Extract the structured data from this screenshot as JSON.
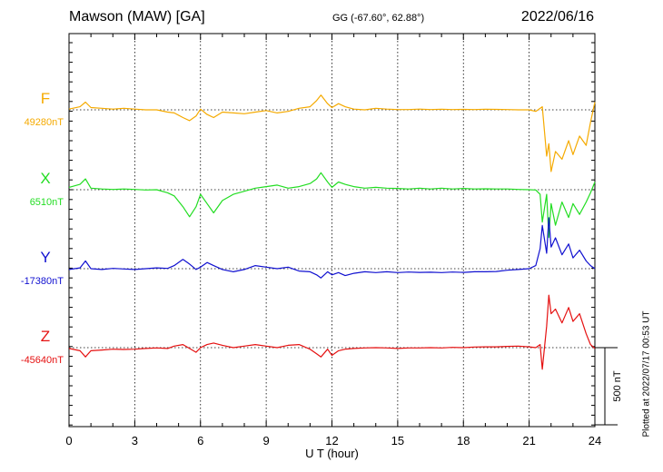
{
  "header": {
    "station": "Mawson (MAW)  [GA]",
    "coords": "GG (-67.60°,  62.88°)",
    "date": "2022/06/16"
  },
  "plotted_note": "Plotted at 2022/07/17 00:53 UT",
  "chart_data": {
    "type": "line",
    "title": "Mawson (MAW)  [GA]",
    "xlabel": "U T (hour)",
    "xlim": [
      0,
      24
    ],
    "xticks": [
      0,
      3,
      6,
      9,
      12,
      15,
      18,
      21,
      24
    ],
    "grid": true,
    "scale_bar": {
      "value": 500,
      "label": "500 nT"
    },
    "series": [
      {
        "name": "F",
        "baseline_label": "49280nT",
        "baseline": 49280,
        "color": "#f5aa00",
        "x": [
          0,
          0.5,
          0.75,
          1,
          1.5,
          2,
          2.5,
          3,
          3.5,
          4,
          4.5,
          4.8,
          5.2,
          5.5,
          5.8,
          6,
          6.3,
          6.6,
          7,
          7.5,
          8,
          8.5,
          9,
          9.5,
          10,
          10.5,
          11,
          11.3,
          11.5,
          11.8,
          12,
          12.3,
          12.6,
          13,
          13.5,
          14,
          14.5,
          15,
          15.5,
          16,
          16.5,
          17,
          17.5,
          18,
          18.5,
          19,
          19.5,
          20,
          20.5,
          21,
          21.3,
          21.6,
          21.8,
          21.9,
          22,
          22.2,
          22.5,
          22.8,
          23,
          23.3,
          23.6,
          23.8,
          24
        ],
        "values": [
          49285,
          49300,
          49330,
          49295,
          49290,
          49285,
          49290,
          49285,
          49280,
          49280,
          49265,
          49260,
          49230,
          49210,
          49240,
          49285,
          49250,
          49230,
          49265,
          49260,
          49255,
          49265,
          49275,
          49260,
          49270,
          49290,
          49300,
          49340,
          49375,
          49320,
          49295,
          49320,
          49300,
          49285,
          49280,
          49290,
          49285,
          49282,
          49282,
          49285,
          49282,
          49284,
          49282,
          49283,
          49282,
          49284,
          49283,
          49282,
          49280,
          49280,
          49270,
          49300,
          48980,
          49060,
          48880,
          49010,
          48960,
          49080,
          48990,
          49110,
          49050,
          49200,
          49330
        ]
      },
      {
        "name": "X",
        "baseline_label": "6510nT",
        "baseline": 6510,
        "color": "#22dd22",
        "x": [
          0,
          0.5,
          0.75,
          1,
          1.5,
          2,
          2.5,
          3,
          3.5,
          4,
          4.5,
          4.8,
          5.2,
          5.5,
          5.8,
          6,
          6.3,
          6.6,
          7,
          7.5,
          8,
          8.5,
          9,
          9.5,
          10,
          10.5,
          11,
          11.3,
          11.5,
          11.8,
          12,
          12.3,
          12.6,
          13,
          13.5,
          14,
          14.5,
          15,
          15.5,
          16,
          16.5,
          17,
          17.5,
          18,
          18.5,
          19,
          19.5,
          20,
          20.5,
          21,
          21.3,
          21.5,
          21.6,
          21.8,
          21.9,
          22,
          22.2,
          22.5,
          22.8,
          23,
          23.3,
          23.6,
          23.8,
          24
        ],
        "values": [
          6525,
          6545,
          6580,
          6520,
          6515,
          6512,
          6515,
          6512,
          6508,
          6510,
          6490,
          6470,
          6400,
          6335,
          6400,
          6480,
          6420,
          6360,
          6440,
          6480,
          6500,
          6520,
          6530,
          6540,
          6520,
          6530,
          6550,
          6580,
          6620,
          6560,
          6525,
          6560,
          6545,
          6530,
          6520,
          6525,
          6520,
          6518,
          6515,
          6520,
          6515,
          6520,
          6515,
          6518,
          6515,
          6516,
          6515,
          6515,
          6512,
          6510,
          6508,
          6480,
          6300,
          6480,
          6200,
          6420,
          6280,
          6430,
          6330,
          6420,
          6350,
          6430,
          6490,
          6560
        ]
      },
      {
        "name": "Y",
        "baseline_label": "-17380nT",
        "baseline": -17380,
        "color": "#1010d0",
        "x": [
          0,
          0.5,
          0.75,
          1,
          1.5,
          2,
          2.5,
          3,
          3.5,
          4,
          4.5,
          4.8,
          5.2,
          5.5,
          5.8,
          6,
          6.3,
          6.6,
          7,
          7.5,
          8,
          8.5,
          9,
          9.5,
          10,
          10.5,
          11,
          11.3,
          11.5,
          11.8,
          12,
          12.3,
          12.6,
          13,
          13.5,
          14,
          14.5,
          15,
          15.5,
          16,
          16.5,
          17,
          17.5,
          18,
          18.5,
          19,
          19.5,
          20,
          20.5,
          21,
          21.3,
          21.5,
          21.6,
          21.8,
          21.9,
          22,
          22.2,
          22.5,
          22.8,
          23,
          23.3,
          23.6,
          23.8,
          24
        ],
        "values": [
          -17385,
          -17375,
          -17330,
          -17380,
          -17385,
          -17378,
          -17382,
          -17385,
          -17380,
          -17375,
          -17378,
          -17360,
          -17320,
          -17350,
          -17385,
          -17370,
          -17340,
          -17360,
          -17385,
          -17400,
          -17385,
          -17360,
          -17370,
          -17380,
          -17370,
          -17395,
          -17400,
          -17420,
          -17440,
          -17400,
          -17420,
          -17405,
          -17425,
          -17410,
          -17400,
          -17405,
          -17400,
          -17405,
          -17402,
          -17404,
          -17403,
          -17405,
          -17402,
          -17404,
          -17400,
          -17400,
          -17398,
          -17390,
          -17385,
          -17380,
          -17360,
          -17250,
          -17100,
          -17280,
          -17050,
          -17240,
          -17180,
          -17290,
          -17220,
          -17310,
          -17260,
          -17330,
          -17360,
          -17380
        ]
      },
      {
        "name": "Z",
        "baseline_label": "-45640nT",
        "baseline": -45640,
        "color": "#e51010",
        "x": [
          0,
          0.5,
          0.75,
          1,
          1.5,
          2,
          2.5,
          3,
          3.5,
          4,
          4.5,
          4.8,
          5.2,
          5.5,
          5.8,
          6,
          6.3,
          6.6,
          7,
          7.5,
          8,
          8.5,
          9,
          9.5,
          10,
          10.5,
          11,
          11.3,
          11.5,
          11.8,
          12,
          12.3,
          12.6,
          13,
          13.5,
          14,
          14.5,
          15,
          15.5,
          16,
          16.5,
          17,
          17.5,
          18,
          18.5,
          19,
          19.5,
          20,
          20.5,
          21,
          21.3,
          21.5,
          21.6,
          21.8,
          21.9,
          22,
          22.2,
          22.5,
          22.8,
          23,
          23.3,
          23.6,
          23.8,
          24
        ],
        "values": [
          -45645,
          -45660,
          -45700,
          -45660,
          -45655,
          -45650,
          -45652,
          -45650,
          -45645,
          -45642,
          -45645,
          -45630,
          -45620,
          -45645,
          -45670,
          -45640,
          -45620,
          -45610,
          -45625,
          -45640,
          -45630,
          -45620,
          -45630,
          -45640,
          -45625,
          -45620,
          -45650,
          -45680,
          -45700,
          -45650,
          -45690,
          -45660,
          -45650,
          -45645,
          -45642,
          -45640,
          -45642,
          -45645,
          -45642,
          -45642,
          -45640,
          -45642,
          -45638,
          -45640,
          -45636,
          -45635,
          -45635,
          -45632,
          -45630,
          -45635,
          -45640,
          -45620,
          -45780,
          -45500,
          -45300,
          -45420,
          -45390,
          -45480,
          -45380,
          -45470,
          -45420,
          -45550,
          -45620,
          -45645
        ]
      }
    ]
  }
}
